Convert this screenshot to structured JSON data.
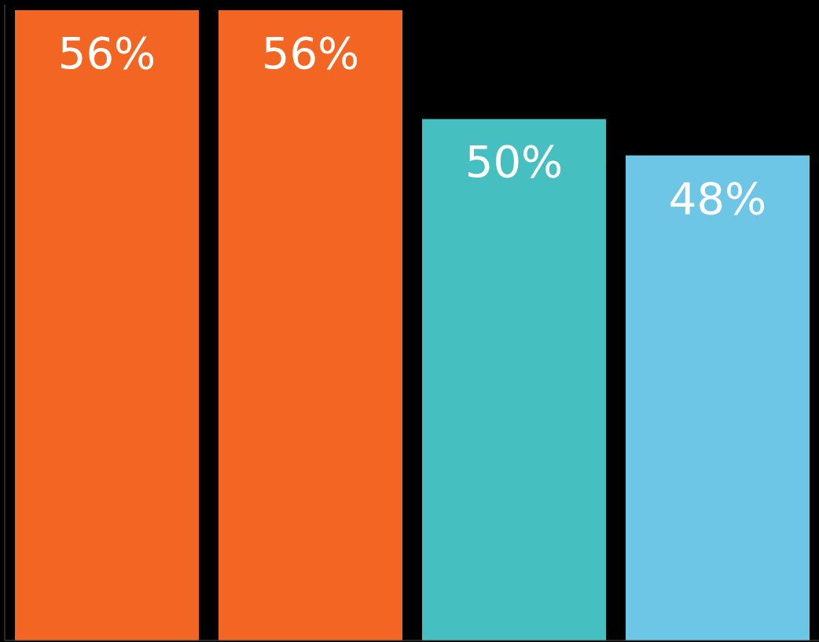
{
  "chart_data": {
    "type": "bar",
    "categories": [
      null,
      null,
      null,
      null
    ],
    "values": [
      56,
      56,
      50,
      48
    ],
    "value_labels": [
      "56%",
      "56%",
      "50%",
      "48%"
    ],
    "colors": [
      "#f26522",
      "#f26522",
      "#45bfbf",
      "#6ec6e6"
    ],
    "ylim": [
      21.3,
      56.3
    ],
    "tick_labels": false,
    "data_labels": true,
    "grid": false
  }
}
